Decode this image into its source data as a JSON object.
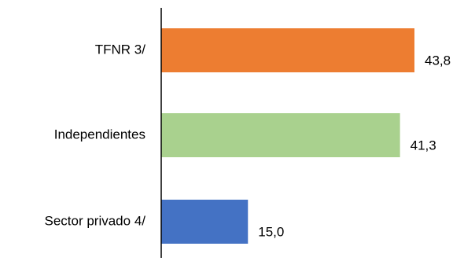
{
  "chart_data": {
    "type": "bar",
    "orientation": "horizontal",
    "categories": [
      "TFNR 3/",
      "Independientes",
      "Sector privado 4/"
    ],
    "values": [
      43.8,
      41.3,
      15.0
    ],
    "value_labels": [
      "43,8",
      "41,3",
      "15,0"
    ],
    "colors": [
      "#ED7D31",
      "#A9D18E",
      "#4472C4"
    ],
    "title": "",
    "xlabel": "",
    "ylabel": "",
    "xlim": [
      0,
      48
    ],
    "grid": false,
    "legend": "none"
  }
}
